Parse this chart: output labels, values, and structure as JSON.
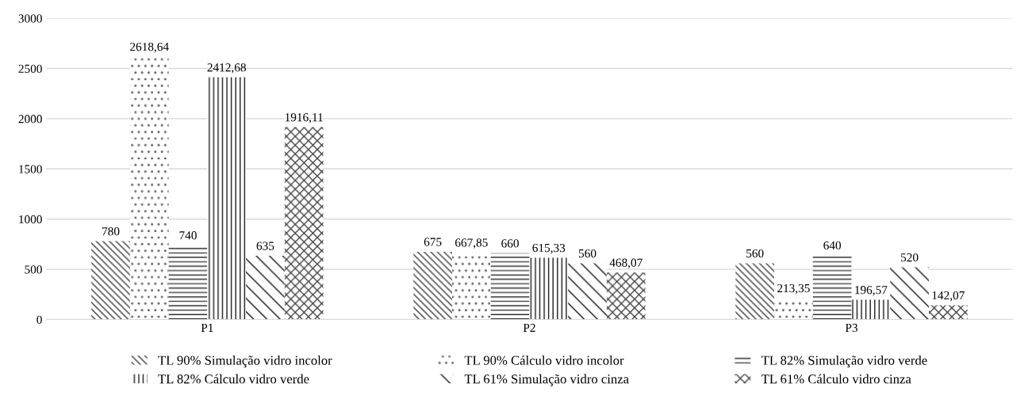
{
  "chart_data": {
    "type": "bar",
    "categories": [
      "P1",
      "P2",
      "P3"
    ],
    "series": [
      {
        "name": "TL 90% Simulação vidro incolor",
        "color": "#3a3a3a",
        "values": [
          780,
          675,
          560
        ],
        "value_labels": [
          "780",
          "675",
          "560"
        ]
      },
      {
        "name": "TL 90% Cálculo vidro incolor",
        "color": "#6a6a6a",
        "values": [
          2618.64,
          667.85,
          213.35
        ],
        "value_labels": [
          "2618,64",
          "667,85",
          "213,35"
        ]
      },
      {
        "name": "TL 82% Simulação vidro verde",
        "color": "#2a2a2a",
        "values": [
          740,
          660,
          640
        ],
        "value_labels": [
          "740",
          "660",
          "640"
        ]
      },
      {
        "name": "TL 82% Cálculo vidro verde",
        "color": "#1a1a1a",
        "values": [
          2412.68,
          615.33,
          196.57
        ],
        "value_labels": [
          "2412,68",
          "615,33",
          "196,57"
        ]
      },
      {
        "name": "TL 61% Simulação vidro cinza",
        "color": "#111111",
        "values": [
          635,
          560,
          520
        ],
        "value_labels": [
          "635",
          "560",
          "520"
        ]
      },
      {
        "name": "TL 61% Cálculo vidro cinza",
        "color": "#444444",
        "values": [
          1916.11,
          468.07,
          142.07
        ],
        "value_labels": [
          "1916,11",
          "468,07",
          "142,07"
        ]
      }
    ],
    "ylim": [
      0,
      3000
    ],
    "yticks": [
      0,
      500,
      1000,
      1500,
      2000,
      2500,
      3000
    ],
    "grid": "y",
    "legend": "bottom"
  }
}
